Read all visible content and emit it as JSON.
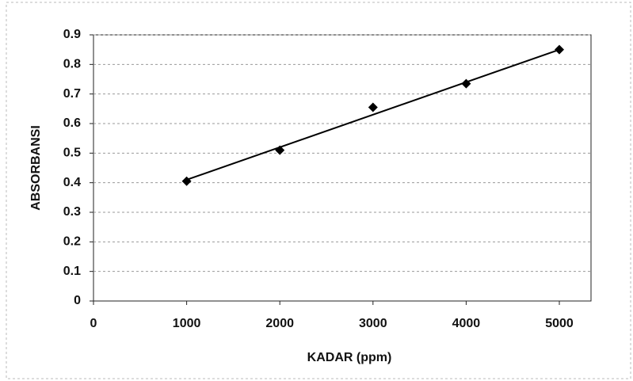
{
  "chart_data": {
    "type": "scatter",
    "x_label": "KADAR (ppm)",
    "y_label": "ABSORBANSI",
    "series": [
      {
        "x": [
          1000,
          2000,
          3000,
          4000,
          5000
        ],
        "values": [
          0.405,
          0.51,
          0.655,
          0.735,
          0.85
        ],
        "color": "#000000"
      }
    ],
    "trendline": {
      "x": [
        1000,
        5000
      ],
      "values": [
        0.41,
        0.85
      ],
      "color": "#000000"
    },
    "xlim": [
      0,
      5340
    ],
    "ylim": [
      0,
      0.9
    ],
    "xticks": [
      0,
      1000,
      2000,
      3000,
      4000,
      5000
    ],
    "yticks": [
      0,
      0.1,
      0.2,
      0.3,
      0.4,
      0.5,
      0.6,
      0.7,
      0.8,
      0.9
    ],
    "grid": true
  }
}
